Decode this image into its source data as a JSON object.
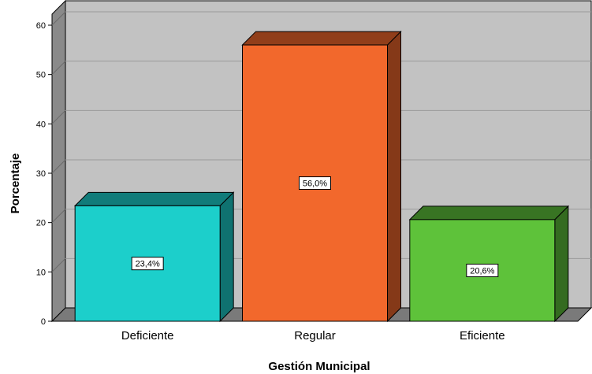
{
  "chart_data": {
    "type": "bar",
    "categories": [
      "Deficiente",
      "Regular",
      "Eficiente"
    ],
    "values": [
      23.4,
      56.0,
      20.6
    ],
    "data_labels": [
      "23,4%",
      "56,0%",
      "20,6%"
    ],
    "colors": [
      "#1ccfcb",
      "#f2682c",
      "#5ec23a"
    ],
    "title": "",
    "xlabel": "Gestión Municipal",
    "ylabel": "Porcentaje",
    "ylim": [
      0,
      60
    ],
    "yticks": [
      "0",
      "10",
      "20",
      "30",
      "40",
      "50",
      "60"
    ],
    "grid": true,
    "style": "3d",
    "legend": "none"
  }
}
